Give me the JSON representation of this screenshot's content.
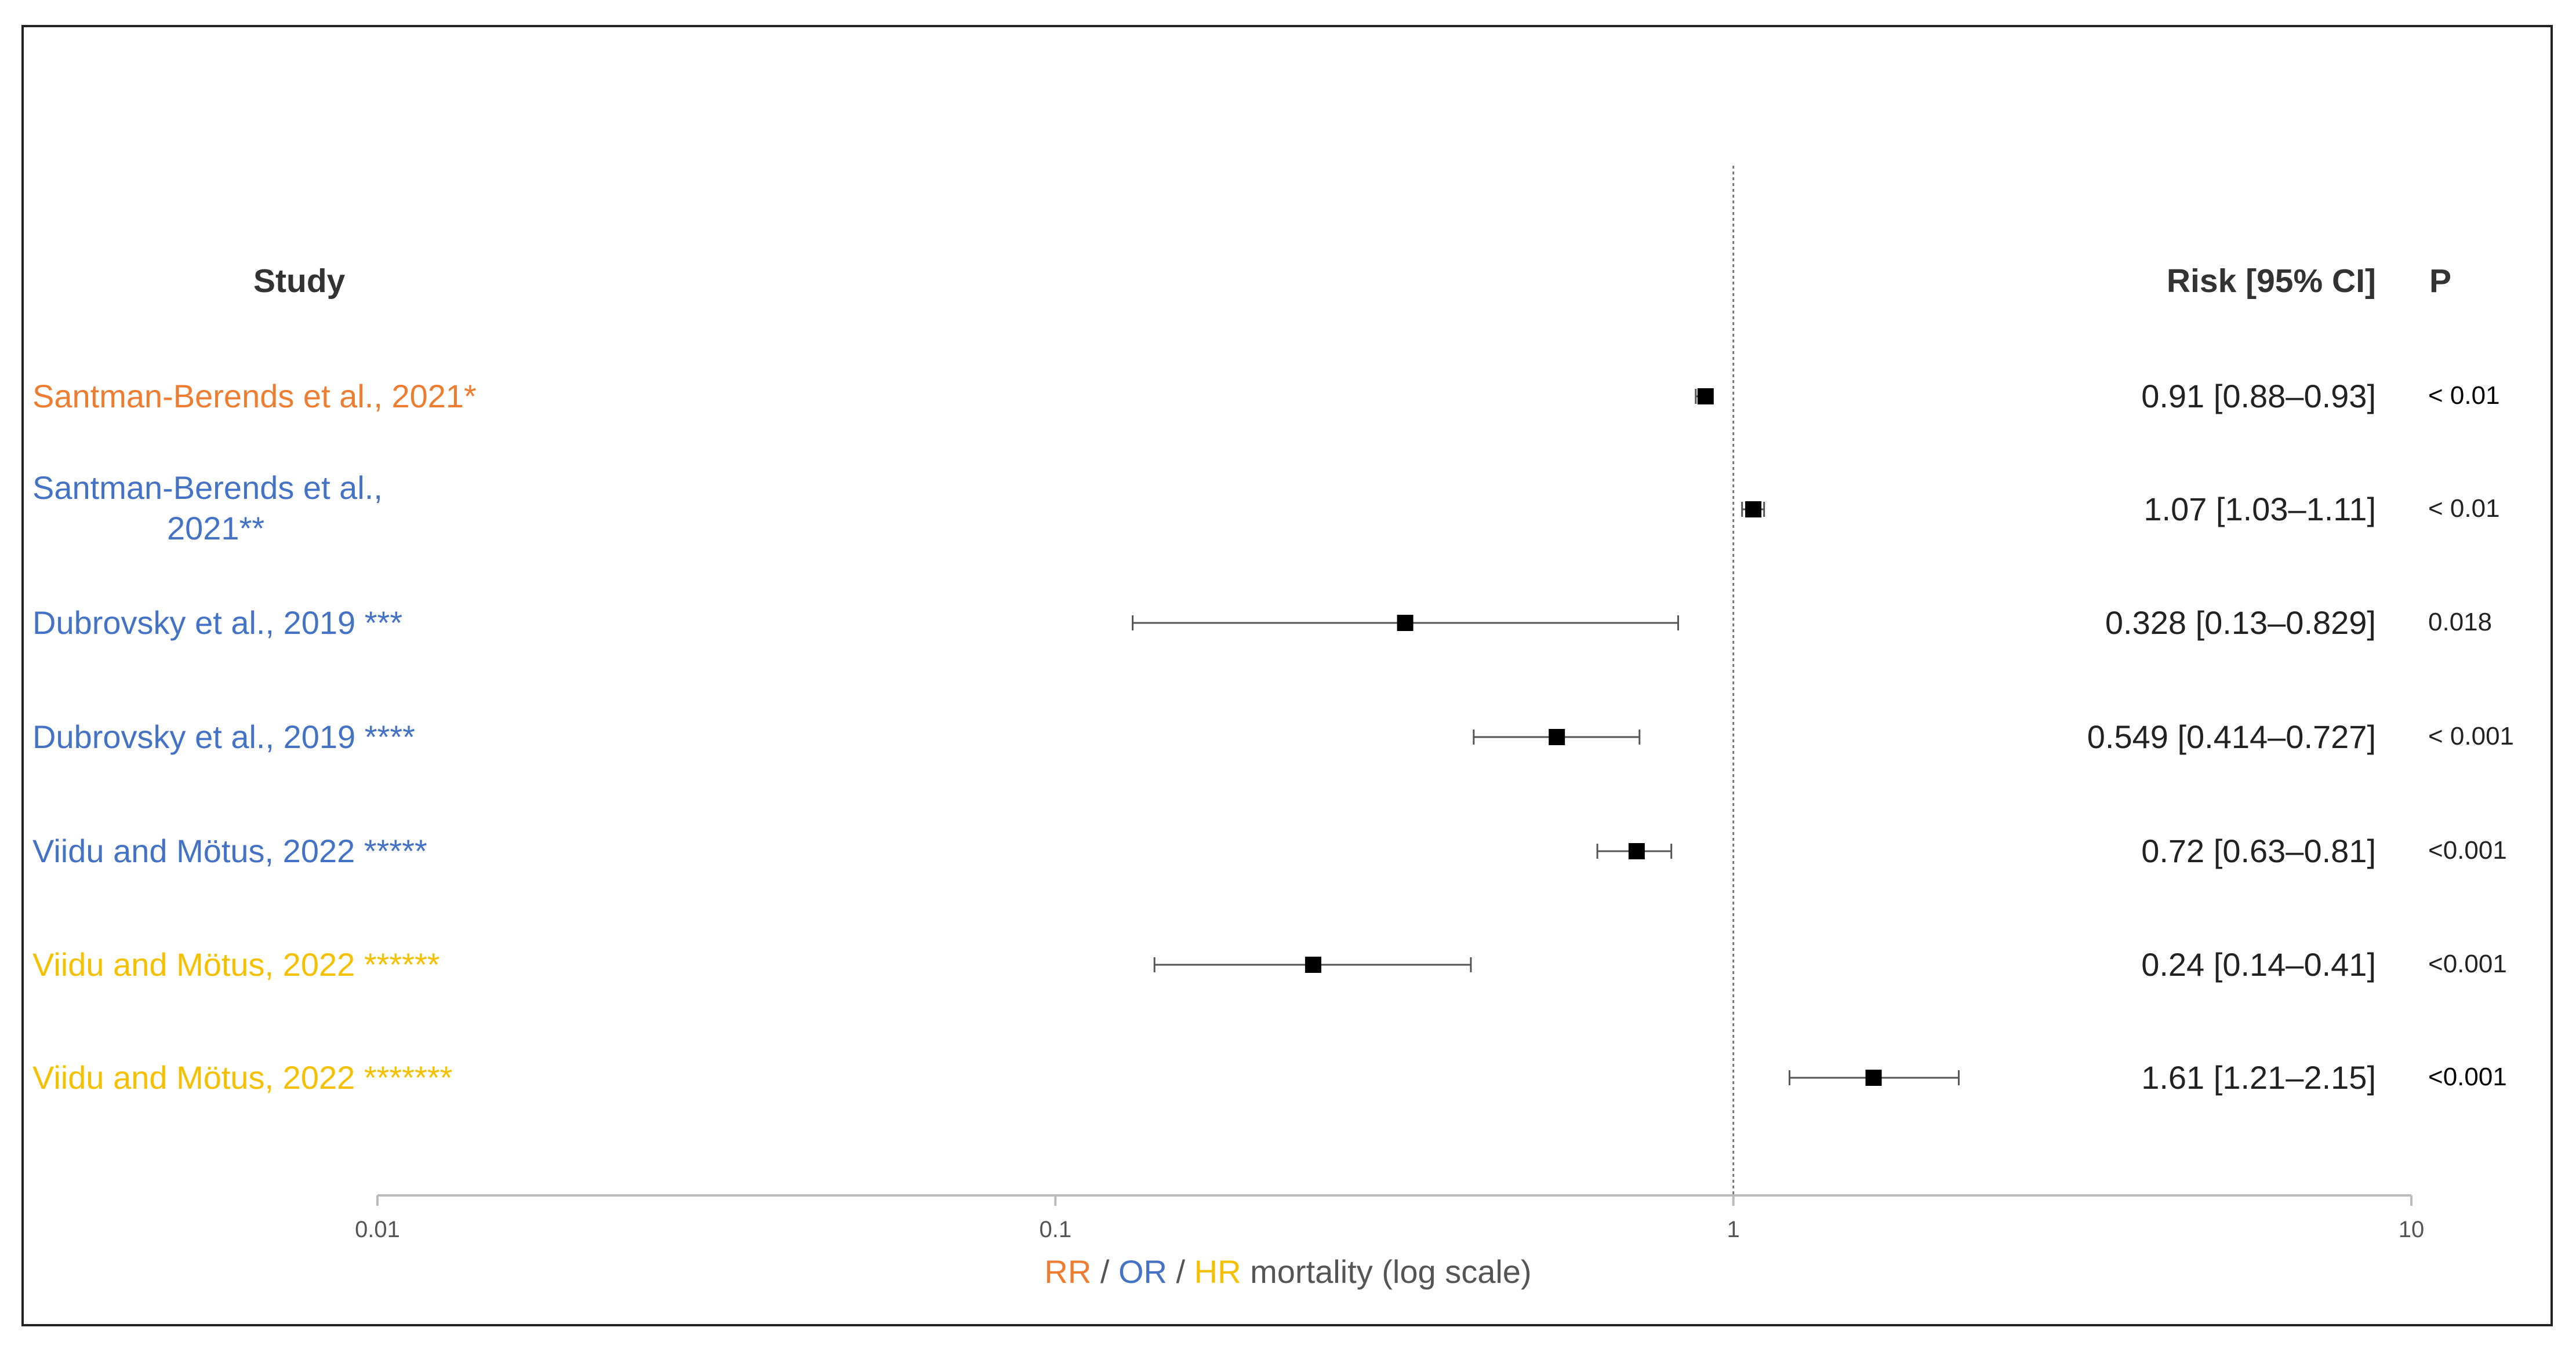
{
  "colors": {
    "rr": "#ED7D31",
    "or": "#4472C4",
    "hr": "#F5C000",
    "marker": "#000000",
    "whisker": "#555555",
    "axis": "#bbbbbb",
    "reference_line": "#777777"
  },
  "headers": {
    "study": "Study",
    "risk": "Risk [95% CI]",
    "p": "P"
  },
  "xlabel": {
    "rr": "RR",
    "sep1": " / ",
    "or": "OR",
    "sep2": " / ",
    "hr": "HR",
    "rest": " mortality (log scale)"
  },
  "chart_data": {
    "type": "forest",
    "x_scale": "log",
    "xlim": [
      0.01,
      10
    ],
    "x_ticks": [
      "0.01",
      "0.1",
      "1",
      "10"
    ],
    "x_tick_values": [
      0.01,
      0.1,
      1,
      10
    ],
    "reference_line": 1,
    "grid": false,
    "rows": [
      {
        "study_lines": [
          "Santman-Berends et al., 2021*"
        ],
        "measure": "rr",
        "estimate": 0.91,
        "lower": 0.88,
        "upper": 0.93,
        "risk_text": "0.91 [0.88–0.93]",
        "p": "< 0.01",
        "p_emphasis": true
      },
      {
        "study_lines": [
          "Santman-Berends et al.,",
          "2021**"
        ],
        "measure": "or",
        "estimate": 1.07,
        "lower": 1.03,
        "upper": 1.11,
        "risk_text": "1.07 [1.03–1.11]",
        "p": "< 0.01",
        "p_emphasis": false
      },
      {
        "study_lines": [
          "Dubrovsky et al., 2019 ***"
        ],
        "measure": "or",
        "estimate": 0.328,
        "lower": 0.13,
        "upper": 0.829,
        "risk_text": "0.328 [0.13–0.829]",
        "p": "0.018",
        "p_emphasis": false
      },
      {
        "study_lines": [
          "Dubrovsky et al., 2019 ****"
        ],
        "measure": "or",
        "estimate": 0.549,
        "lower": 0.414,
        "upper": 0.727,
        "risk_text": "0.549 [0.414–0.727]",
        "p": "< 0.001",
        "p_emphasis": false
      },
      {
        "study_lines": [
          "Viidu and Mötus, 2022 *****"
        ],
        "measure": "or",
        "estimate": 0.72,
        "lower": 0.63,
        "upper": 0.81,
        "risk_text": "0.72 [0.63–0.81]",
        "p": "<0.001",
        "p_emphasis": false
      },
      {
        "study_lines": [
          "Viidu and Mötus, 2022 ******"
        ],
        "measure": "hr",
        "estimate": 0.24,
        "lower": 0.14,
        "upper": 0.41,
        "risk_text": "0.24 [0.14–0.41]",
        "p": "<0.001",
        "p_emphasis": false
      },
      {
        "study_lines": [
          "Viidu and Mötus, 2022 *******"
        ],
        "measure": "hr",
        "estimate": 1.61,
        "lower": 1.21,
        "upper": 2.15,
        "risk_text": "1.61 [1.21–2.15]",
        "p": "<0.001",
        "p_emphasis": true
      }
    ]
  }
}
